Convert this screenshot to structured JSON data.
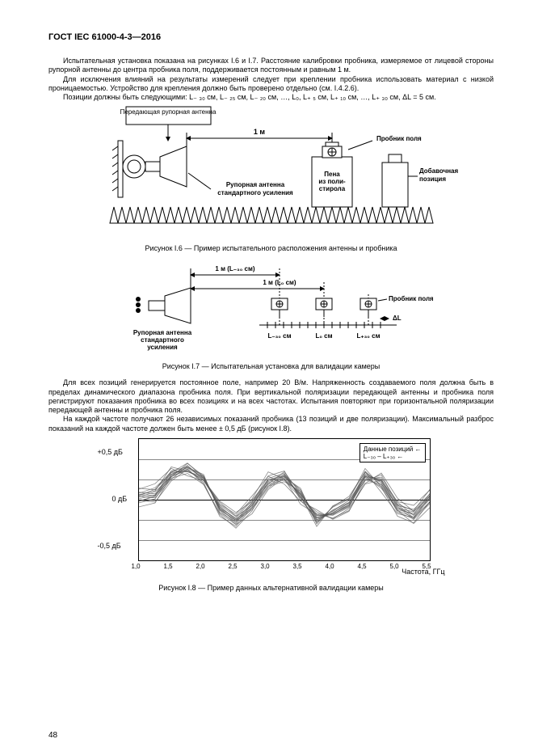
{
  "doc": {
    "standard": "ГОСТ IEC 61000-4-3—2016",
    "page_number": "48"
  },
  "intro": {
    "p1": "Испытательная установка показана на рисунках I.6 и I.7. Расстояние калибровки пробника, измеряемое от лицевой стороны рупорной антенны до центра пробника поля, поддерживается постоянным и равным 1 м.",
    "p2": "Для исключения влияний на результаты измерений следует при креплении пробника использовать материал с низкой проницаемостью. Устройство для крепления должно быть проверено отдельно (см. I.4.2.6).",
    "p3": "Позиции должны быть следующими: L₋ ₃₀ см, L₋ ₂₅ см, L₋ ₂₀ см, …, L₀, L₊ ₅ см, L₊ ₁₀ см, …, L₊ ₃₀ см, ΔL = 5 см."
  },
  "fig6": {
    "label_tx_antenna_arrow": "Передающая рупорная антенна",
    "label_distance": "1 м",
    "label_probe": "Пробник поля",
    "label_horn": "Рупорная антенна стандартного усиления",
    "label_foam": "Пена из поли-стирола",
    "label_add": "Добавочная позиция",
    "caption": "Рисунок I.6 — Пример испытательного расположения антенны и пробника"
  },
  "fig7": {
    "label_d1": "1 м (L₋₃₀ см)",
    "label_d2": "1 м (L₀ см)",
    "label_probe": "Пробник поля",
    "label_horn": "Рупорная антенна стандартного усиления",
    "tick_l": "L₋₃₀ см",
    "tick_c": "L₀ см",
    "tick_r": "L₊₃₀ см",
    "delta": "ΔL",
    "caption": "Рисунок I.7 — Испытательная установка для валидации камеры"
  },
  "mid": {
    "p1": "Для всех позиций генерируется постоянное поле, например 20 В/м. Напряженность создаваемого поля должна быть в пределах динамического диапазона пробника поля. При вертикальной поляризации передающей антенны и пробника поля регистрируют показания пробника во всех позициях и на всех частотах. Испытания повторяют при горизонтальной поляризации передающей антенны и пробника поля.",
    "p2": "На каждой частоте получают 26 независимых показаний пробника (13 позиций и две поляризации). Максимальный разброс показаний на каждой частоте должен быть менее ± 0,5 дБ (рисунок I.8)."
  },
  "chart": {
    "type": "line",
    "y_max_label": "+0,5 дБ",
    "y_mid_label": "0 дБ",
    "y_min_label": "-0,5 дБ",
    "legend_line1": "Данные позиций ←",
    "legend_line2": "L₋₃₀ – L₊₃₀ ←",
    "x_label": "Частота, ГГц",
    "x_ticks": [
      "1,0",
      "1,5",
      "2,0",
      "2,5",
      "3,0",
      "3,5",
      "4,0",
      "4,5",
      "5,0",
      "5,5"
    ],
    "ylim": [
      -0.75,
      0.75
    ],
    "xlim": [
      1.0,
      5.5
    ],
    "grid_color": "#888888",
    "line_color": "#555555",
    "background_color": "#ffffff",
    "n_series": 13,
    "series_example": [
      [
        0.05,
        0.1,
        0.35,
        0.4,
        0.3,
        -0.15,
        -0.3,
        -0.1,
        0.2,
        0.3,
        0.1,
        -0.25,
        -0.15,
        -0.05,
        0.3,
        0.2,
        -0.1,
        -0.2,
        0.0
      ],
      [
        0.0,
        0.05,
        0.3,
        0.42,
        0.25,
        -0.1,
        -0.25,
        -0.05,
        0.25,
        0.35,
        0.05,
        -0.2,
        -0.2,
        -0.1,
        0.25,
        0.25,
        -0.05,
        -0.15,
        0.05
      ],
      [
        -0.05,
        0.0,
        0.28,
        0.38,
        0.2,
        -0.2,
        -0.35,
        -0.15,
        0.18,
        0.28,
        0.12,
        -0.3,
        -0.1,
        0.0,
        0.35,
        0.15,
        -0.15,
        -0.25,
        -0.05
      ],
      [
        0.1,
        0.15,
        0.4,
        0.35,
        0.25,
        -0.05,
        -0.2,
        0.0,
        0.3,
        0.25,
        0.0,
        -0.15,
        -0.25,
        -0.15,
        0.2,
        0.3,
        0.0,
        -0.1,
        0.1
      ],
      [
        0.02,
        0.08,
        0.33,
        0.45,
        0.28,
        -0.12,
        -0.28,
        -0.08,
        0.22,
        0.32,
        0.08,
        -0.22,
        -0.18,
        -0.08,
        0.28,
        0.22,
        -0.08,
        -0.18,
        0.02
      ]
    ],
    "caption": "Рисунок I.8 — Пример данных альтернативной валидации камеры"
  }
}
